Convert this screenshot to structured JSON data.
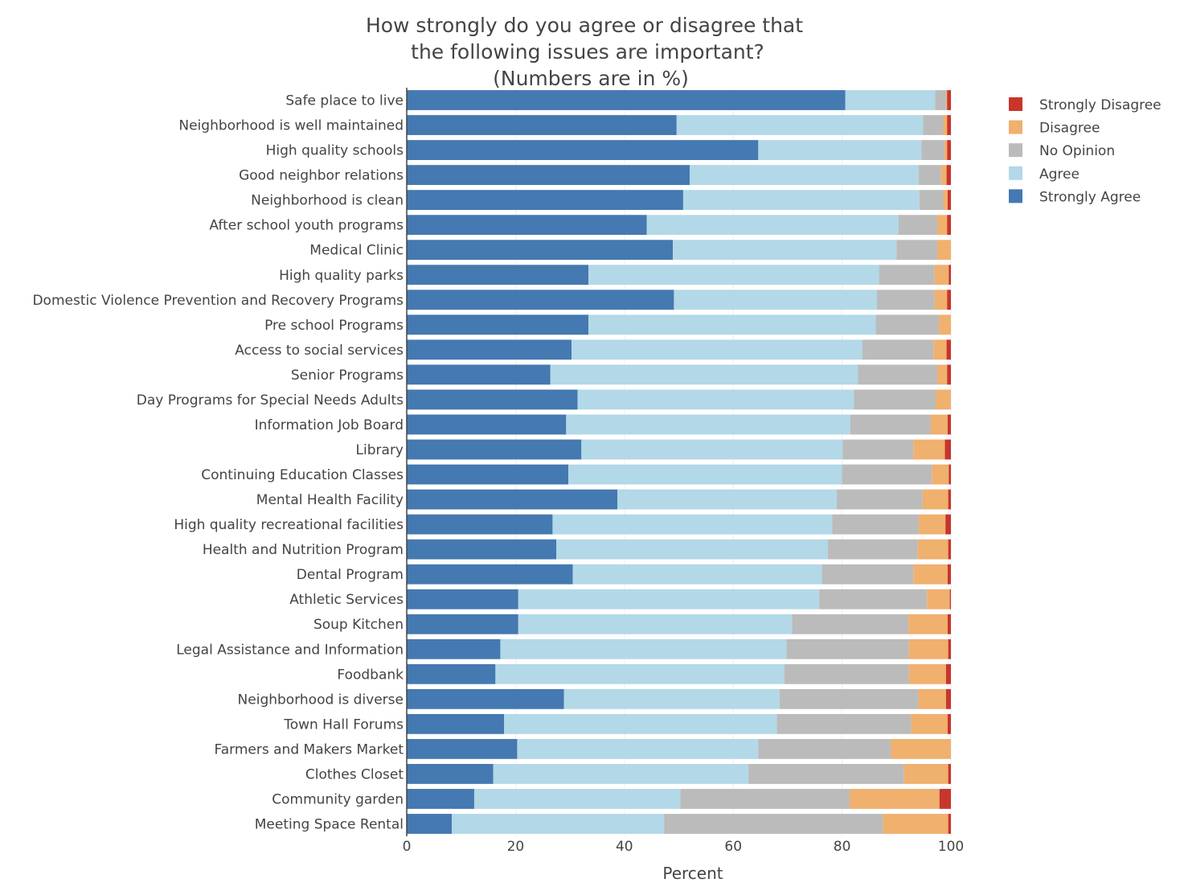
{
  "chart_data": {
    "type": "bar",
    "orientation": "horizontal",
    "stacked": true,
    "title": [
      "How strongly do you agree or disagree that",
      "the following issues are important?",
      "(Numbers are in %)"
    ],
    "xlabel": "Percent",
    "ylabel": "",
    "xlim": [
      0,
      100
    ],
    "xticks": [
      0,
      20,
      40,
      60,
      80,
      100
    ],
    "grid": true,
    "legend_position": "top-right",
    "categories": [
      "Safe place to live",
      "Neighborhood is well maintained",
      "High quality schools",
      "Good neighbor relations",
      "Neighborhood is clean",
      "After school youth programs",
      "Medical Clinic",
      "High quality parks",
      "Domestic Violence Prevention and Recovery Programs",
      "Pre school Programs",
      "Access to social services",
      "Senior Programs",
      "Day Programs for Special Needs Adults",
      "Information Job Board",
      "Library",
      "Continuing Education Classes",
      "Mental Health Facility",
      "High quality recreational facilities",
      "Health and Nutrition Program",
      "Dental Program",
      "Athletic Services",
      "Soup Kitchen",
      "Legal Assistance and Information",
      "Foodbank",
      "Neighborhood is diverse",
      "Town Hall Forums",
      "Farmers and Makers Market",
      "Clothes Closet",
      "Community garden",
      "Meeting Space Rental"
    ],
    "series": [
      {
        "name": "Strongly Agree",
        "color": "#4479b1",
        "values": [
          80.6,
          49.6,
          64.6,
          52.0,
          50.8,
          44.1,
          48.9,
          33.4,
          49.1,
          33.4,
          30.3,
          26.4,
          31.4,
          29.3,
          32.1,
          29.7,
          38.7,
          26.8,
          27.5,
          30.5,
          20.5,
          20.5,
          17.2,
          16.3,
          28.9,
          17.9,
          20.3,
          15.9,
          12.4,
          8.3
        ]
      },
      {
        "name": "Agree",
        "color": "#b3d8e7",
        "values": [
          16.5,
          45.3,
          30.0,
          42.1,
          43.4,
          46.3,
          41.1,
          53.4,
          37.3,
          52.8,
          53.4,
          56.5,
          50.8,
          52.2,
          48.0,
          50.3,
          40.3,
          51.4,
          49.9,
          45.8,
          55.3,
          50.3,
          52.6,
          53.1,
          39.6,
          50.1,
          44.3,
          46.9,
          37.9,
          39.0
        ]
      },
      {
        "name": "No Opinion",
        "color": "#bbbbbb",
        "values": [
          2.0,
          3.7,
          4.2,
          4.1,
          4.4,
          7.1,
          7.5,
          10.2,
          10.6,
          11.6,
          13.1,
          14.6,
          15.0,
          14.8,
          13.0,
          16.5,
          15.8,
          15.9,
          16.5,
          16.8,
          19.8,
          21.4,
          22.5,
          22.9,
          25.5,
          24.7,
          24.4,
          28.6,
          31.1,
          40.2
        ]
      },
      {
        "name": "Disagree",
        "color": "#f0b06e",
        "values": [
          0.2,
          0.7,
          0.5,
          1.0,
          0.8,
          1.8,
          2.5,
          2.6,
          2.3,
          2.2,
          2.4,
          1.8,
          2.8,
          3.1,
          5.8,
          3.1,
          4.7,
          4.9,
          5.6,
          6.3,
          4.2,
          7.2,
          7.2,
          6.8,
          5.1,
          6.7,
          11.0,
          8.1,
          16.5,
          12.0
        ]
      },
      {
        "name": "Strongly Disagree",
        "color": "#c8352b",
        "values": [
          0.7,
          0.7,
          0.7,
          0.8,
          0.6,
          0.7,
          0.0,
          0.4,
          0.7,
          0.0,
          0.8,
          0.7,
          0.0,
          0.6,
          1.1,
          0.4,
          0.5,
          1.0,
          0.5,
          0.6,
          0.2,
          0.6,
          0.5,
          0.9,
          0.9,
          0.6,
          0.0,
          0.5,
          2.1,
          0.5
        ]
      }
    ]
  }
}
